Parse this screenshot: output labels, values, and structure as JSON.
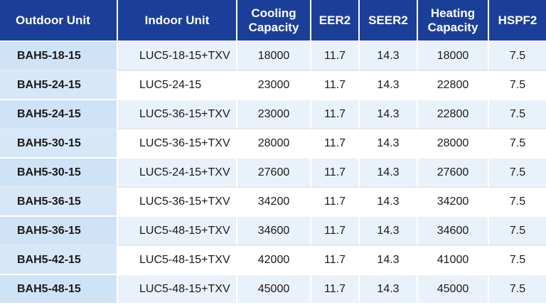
{
  "headers": {
    "outdoor_unit": "Outdoor Unit",
    "indoor_unit": "Indoor Unit",
    "cooling_line1": "Cooling",
    "cooling_line2": "Capacity",
    "eer2": "EER2",
    "seer2": "SEER2",
    "heating_line1": "Heating",
    "heating_line2": "Capacity",
    "hspf2": "HSPF2"
  },
  "rows": [
    {
      "outdoor": "BAH5-18-15",
      "indoor": "LUC5-18-15+TXV",
      "cooling": "18000",
      "eer2": "11.7",
      "seer2": "14.3",
      "heating": "18000",
      "hspf2": "7.5"
    },
    {
      "outdoor": "BAH5-24-15",
      "indoor": "LUC5-24-15",
      "cooling": "23000",
      "eer2": "11.7",
      "seer2": "14.3",
      "heating": "22800",
      "hspf2": "7.5"
    },
    {
      "outdoor": "BAH5-24-15",
      "indoor": "LUC5-36-15+TXV",
      "cooling": "23000",
      "eer2": "11.7",
      "seer2": "14.3",
      "heating": "22800",
      "hspf2": "7.5"
    },
    {
      "outdoor": "BAH5-30-15",
      "indoor": "LUC5-36-15+TXV",
      "cooling": "28000",
      "eer2": "11.7",
      "seer2": "14.3",
      "heating": "28000",
      "hspf2": "7.5"
    },
    {
      "outdoor": "BAH5-30-15",
      "indoor": "LUC5-24-15+TXV",
      "cooling": "27600",
      "eer2": "11.7",
      "seer2": "14.3",
      "heating": "27600",
      "hspf2": "7.5"
    },
    {
      "outdoor": "BAH5-36-15",
      "indoor": "LUC5-36-15+TXV",
      "cooling": "34200",
      "eer2": "11.7",
      "seer2": "14.3",
      "heating": "34200",
      "hspf2": "7.5"
    },
    {
      "outdoor": "BAH5-36-15",
      "indoor": "LUC5-48-15+TXV",
      "cooling": "34600",
      "eer2": "11.7",
      "seer2": "14.3",
      "heating": "34600",
      "hspf2": "7.5"
    },
    {
      "outdoor": "BAH5-42-15",
      "indoor": "LUC5-48-15+TXV",
      "cooling": "42000",
      "eer2": "11.7",
      "seer2": "14.3",
      "heating": "41000",
      "hspf2": "7.5"
    },
    {
      "outdoor": "BAH5-48-15",
      "indoor": "LUC5-48-15+TXV",
      "cooling": "45000",
      "eer2": "11.7",
      "seer2": "14.3",
      "heating": "45000",
      "hspf2": "7.5"
    }
  ],
  "colors": {
    "header_bg": "#1b3f99",
    "header_text": "#ffffff",
    "row_light": "#e9f2fb",
    "row_white": "#ffffff",
    "outdoor_col_bg": "#cfe3f6"
  }
}
